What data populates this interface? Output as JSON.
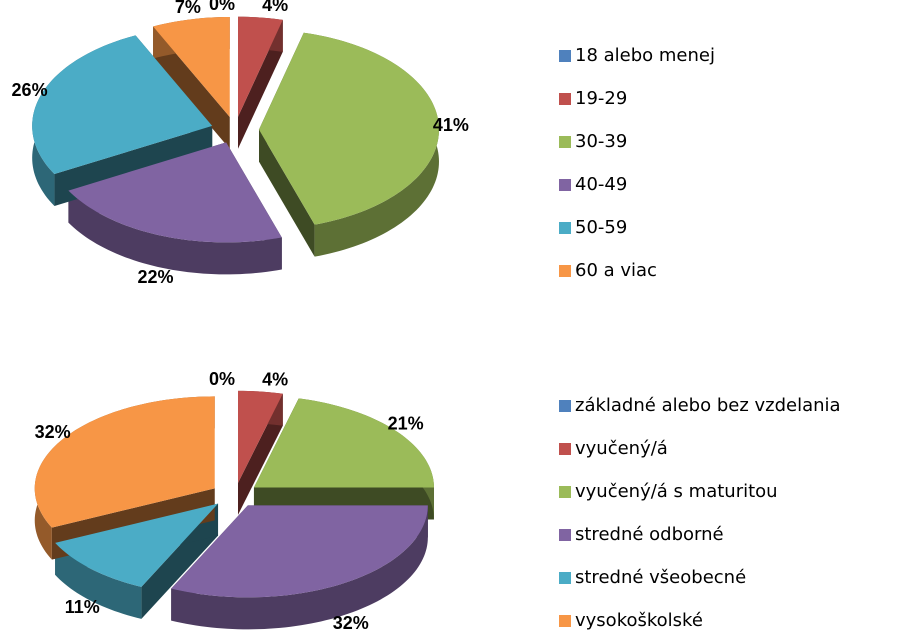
{
  "chart_data": [
    {
      "type": "pie",
      "categories": [
        "18 alebo menej",
        "19-29",
        "30-39",
        "40-49",
        "50-59",
        "60 a viac"
      ],
      "values": [
        0,
        4,
        41,
        22,
        26,
        7
      ],
      "value_labels": [
        "0%",
        "4%",
        "41%",
        "22%",
        "26%",
        "7%"
      ],
      "colors": [
        "#4f81bd",
        "#c0504d",
        "#9bbb59",
        "#8064a2",
        "#4bacc6",
        "#f79646"
      ],
      "legend": "right"
    },
    {
      "type": "pie",
      "categories": [
        "základné alebo bez vzdelania",
        "vyučený/á",
        "vyučený/á s maturitou",
        "stredné odborné",
        "stredné všeobecné",
        "vysokoškolské"
      ],
      "values": [
        0,
        4,
        21,
        32,
        11,
        32
      ],
      "value_labels": [
        "0%",
        "4%",
        "21%",
        "32%",
        "11%",
        "32%"
      ],
      "colors": [
        "#4f81bd",
        "#c0504d",
        "#9bbb59",
        "#8064a2",
        "#4bacc6",
        "#f79646"
      ],
      "legend": "right"
    }
  ]
}
